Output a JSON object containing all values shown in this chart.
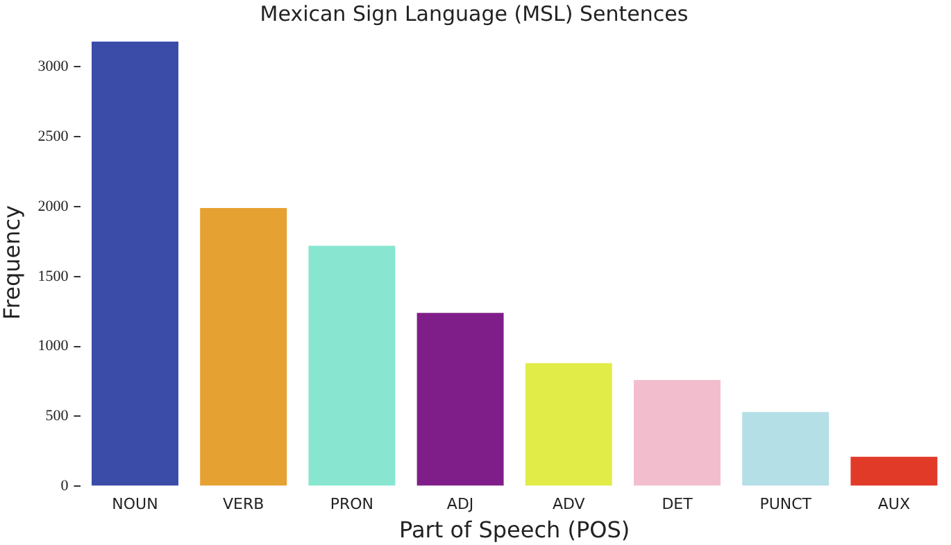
{
  "chart_data": {
    "type": "bar",
    "title": "Mexican Sign Language (MSL) Sentences",
    "xlabel": "Part of Speech (POS)",
    "ylabel": "Frequency",
    "categories": [
      "NOUN",
      "VERB",
      "PRON",
      "ADJ",
      "ADV",
      "DET",
      "PUNCT",
      "AUX"
    ],
    "values": [
      3180,
      1990,
      1720,
      1240,
      880,
      760,
      530,
      210
    ],
    "colors": [
      "#3a4ba8",
      "#e6a133",
      "#88e6d0",
      "#801e89",
      "#e1ec48",
      "#f2bece",
      "#b4dfe6",
      "#e23a29"
    ],
    "ylim": [
      0,
      3200
    ],
    "yticks": [
      0,
      500,
      1000,
      1500,
      2000,
      2500,
      3000
    ],
    "grid": false,
    "legend": false
  }
}
